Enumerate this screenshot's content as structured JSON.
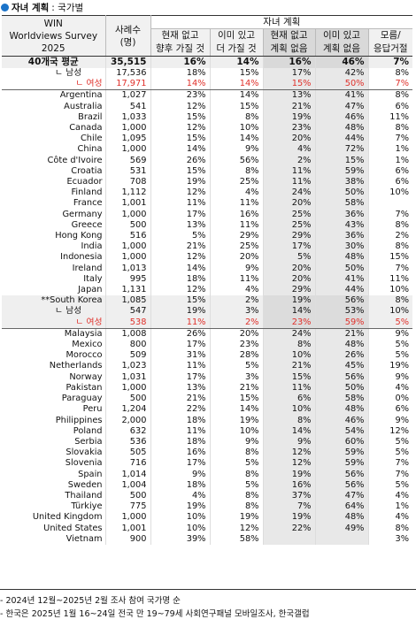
{
  "title": {
    "bold": "자녀 계획",
    "rest": ": 국가별"
  },
  "header": {
    "survey_line1": "WIN",
    "survey_line2": "Worldviews Survey",
    "survey_line3": "2025",
    "cases_line1": "사례수",
    "cases_line2": "(명)",
    "group_label": "자녀 계획",
    "cols": [
      {
        "l1": "현재 없고",
        "l2": "향후 가질 것"
      },
      {
        "l1": "이미 있고",
        "l2": "더 가질 것"
      },
      {
        "l1": "현재 없고",
        "l2": "계획 없음"
      },
      {
        "l1": "이미 있고",
        "l2": "계획 없음"
      },
      {
        "l1": "모름/",
        "l2": "응답거절"
      }
    ]
  },
  "rows": [
    {
      "name": "40개국 평균",
      "n": "35,515",
      "v": [
        "16%",
        "14%",
        "16%",
        "46%",
        "7%"
      ],
      "type": "total"
    },
    {
      "name": "ㄴ 남성",
      "n": "17,536",
      "v": [
        "18%",
        "15%",
        "17%",
        "42%",
        "8%"
      ],
      "type": "sub"
    },
    {
      "name": "ㄴ 여성",
      "n": "17,971",
      "v": [
        "14%",
        "14%",
        "15%",
        "50%",
        "7%"
      ],
      "type": "female total-end"
    },
    {
      "name": "Argentina",
      "n": "1,027",
      "v": [
        "23%",
        "14%",
        "13%",
        "41%",
        "8%"
      ]
    },
    {
      "name": "Australia",
      "n": "541",
      "v": [
        "12%",
        "15%",
        "21%",
        "47%",
        "6%"
      ]
    },
    {
      "name": "Brazil",
      "n": "1,033",
      "v": [
        "15%",
        "8%",
        "19%",
        "46%",
        "11%"
      ]
    },
    {
      "name": "Canada",
      "n": "1,000",
      "v": [
        "12%",
        "10%",
        "23%",
        "48%",
        "8%"
      ]
    },
    {
      "name": "Chile",
      "n": "1,095",
      "v": [
        "15%",
        "14%",
        "20%",
        "44%",
        "7%"
      ]
    },
    {
      "name": "China",
      "n": "1,000",
      "v": [
        "14%",
        "9%",
        "4%",
        "72%",
        "1%"
      ]
    },
    {
      "name": "Côte d'Ivoire",
      "n": "569",
      "v": [
        "26%",
        "56%",
        "2%",
        "15%",
        "1%"
      ]
    },
    {
      "name": "Croatia",
      "n": "531",
      "v": [
        "15%",
        "8%",
        "11%",
        "59%",
        "6%"
      ]
    },
    {
      "name": "Ecuador",
      "n": "708",
      "v": [
        "19%",
        "25%",
        "11%",
        "38%",
        "6%"
      ]
    },
    {
      "name": "Finland",
      "n": "1,112",
      "v": [
        "12%",
        "4%",
        "24%",
        "50%",
        "10%"
      ]
    },
    {
      "name": "France",
      "n": "1,001",
      "v": [
        "11%",
        "11%",
        "20%",
        "58%",
        ""
      ]
    },
    {
      "name": "Germany",
      "n": "1,000",
      "v": [
        "17%",
        "16%",
        "25%",
        "36%",
        "7%"
      ]
    },
    {
      "name": "Greece",
      "n": "500",
      "v": [
        "13%",
        "11%",
        "25%",
        "43%",
        "8%"
      ]
    },
    {
      "name": "Hong Kong",
      "n": "516",
      "v": [
        "5%",
        "29%",
        "29%",
        "36%",
        "2%"
      ]
    },
    {
      "name": "India",
      "n": "1,000",
      "v": [
        "21%",
        "25%",
        "17%",
        "30%",
        "8%"
      ]
    },
    {
      "name": "Indonesia",
      "n": "1,000",
      "v": [
        "12%",
        "20%",
        "5%",
        "48%",
        "15%"
      ]
    },
    {
      "name": "Ireland",
      "n": "1,013",
      "v": [
        "14%",
        "9%",
        "20%",
        "50%",
        "7%"
      ]
    },
    {
      "name": "Italy",
      "n": "995",
      "v": [
        "18%",
        "11%",
        "20%",
        "41%",
        "11%"
      ]
    },
    {
      "name": "Japan",
      "n": "1,131",
      "v": [
        "12%",
        "4%",
        "29%",
        "44%",
        "10%"
      ]
    },
    {
      "name": "**South Korea",
      "n": "1,085",
      "v": [
        "15%",
        "2%",
        "19%",
        "56%",
        "8%"
      ],
      "type": "grp"
    },
    {
      "name": "ㄴ 남성",
      "n": "547",
      "v": [
        "19%",
        "3%",
        "14%",
        "53%",
        "10%"
      ],
      "type": "grp sub"
    },
    {
      "name": "ㄴ 여성",
      "n": "538",
      "v": [
        "11%",
        "2%",
        "23%",
        "59%",
        "5%"
      ],
      "type": "grp female grp-end"
    },
    {
      "name": "Malaysia",
      "n": "1,008",
      "v": [
        "26%",
        "20%",
        "24%",
        "21%",
        "9%"
      ]
    },
    {
      "name": "Mexico",
      "n": "800",
      "v": [
        "17%",
        "23%",
        "8%",
        "48%",
        "5%"
      ]
    },
    {
      "name": "Morocco",
      "n": "509",
      "v": [
        "31%",
        "28%",
        "10%",
        "26%",
        "5%"
      ]
    },
    {
      "name": "Netherlands",
      "n": "1,023",
      "v": [
        "11%",
        "5%",
        "21%",
        "45%",
        "19%"
      ]
    },
    {
      "name": "Norway",
      "n": "1,031",
      "v": [
        "17%",
        "3%",
        "15%",
        "56%",
        "9%"
      ]
    },
    {
      "name": "Pakistan",
      "n": "1,000",
      "v": [
        "13%",
        "21%",
        "11%",
        "50%",
        "4%"
      ]
    },
    {
      "name": "Paraguay",
      "n": "500",
      "v": [
        "21%",
        "15%",
        "6%",
        "58%",
        "0%"
      ]
    },
    {
      "name": "Peru",
      "n": "1,204",
      "v": [
        "22%",
        "14%",
        "10%",
        "48%",
        "6%"
      ]
    },
    {
      "name": "Philippines",
      "n": "2,000",
      "v": [
        "18%",
        "19%",
        "8%",
        "46%",
        "9%"
      ]
    },
    {
      "name": "Poland",
      "n": "632",
      "v": [
        "11%",
        "10%",
        "14%",
        "54%",
        "12%"
      ]
    },
    {
      "name": "Serbia",
      "n": "536",
      "v": [
        "18%",
        "9%",
        "9%",
        "60%",
        "5%"
      ]
    },
    {
      "name": "Slovakia",
      "n": "505",
      "v": [
        "16%",
        "8%",
        "12%",
        "59%",
        "5%"
      ]
    },
    {
      "name": "Slovenia",
      "n": "716",
      "v": [
        "17%",
        "5%",
        "12%",
        "59%",
        "7%"
      ]
    },
    {
      "name": "Spain",
      "n": "1,014",
      "v": [
        "9%",
        "8%",
        "19%",
        "56%",
        "7%"
      ]
    },
    {
      "name": "Sweden",
      "n": "1,004",
      "v": [
        "18%",
        "5%",
        "16%",
        "56%",
        "5%"
      ]
    },
    {
      "name": "Thailand",
      "n": "500",
      "v": [
        "4%",
        "8%",
        "37%",
        "47%",
        "4%"
      ]
    },
    {
      "name": "Türkiye",
      "n": "775",
      "v": [
        "19%",
        "8%",
        "7%",
        "64%",
        "1%"
      ]
    },
    {
      "name": "United Kingdom",
      "n": "1,000",
      "v": [
        "10%",
        "19%",
        "19%",
        "48%",
        "4%"
      ]
    },
    {
      "name": "United States",
      "n": "1,001",
      "v": [
        "10%",
        "12%",
        "22%",
        "49%",
        "8%"
      ]
    },
    {
      "name": "Vietnam",
      "n": "900",
      "v": [
        "39%",
        "58%",
        "",
        "",
        "3%"
      ]
    }
  ],
  "footnotes": [
    "- 2024년 12월~2025년 2월 조사 참여 국가명 순",
    "- 한국은 2025년 1월 16~24일 전국 만 19~79세 사회연구패널 모바일조사, 한국갤럽"
  ]
}
